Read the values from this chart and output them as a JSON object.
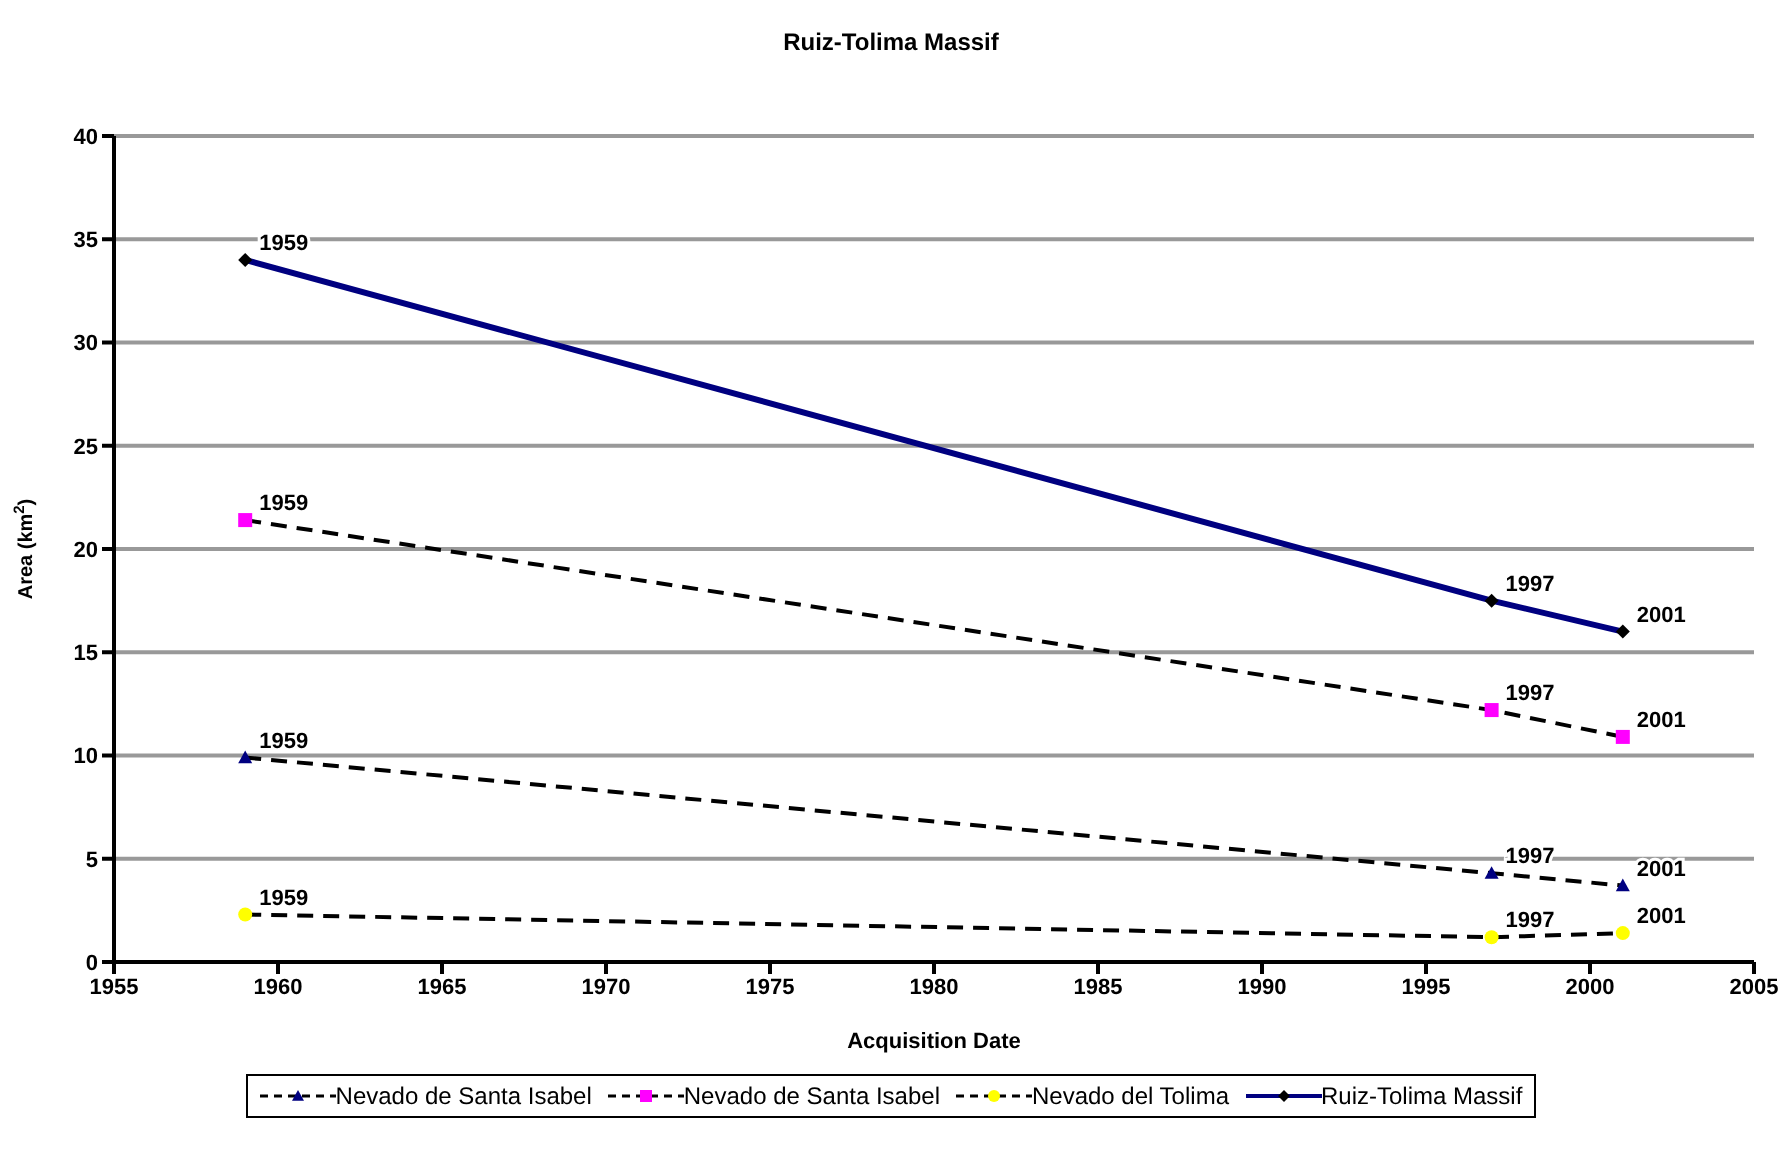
{
  "chart_data": {
    "type": "line",
    "title": "Ruiz-Tolima Massif",
    "xlabel": "Acquisition Date",
    "ylabel": "Area (km$^{2}$)",
    "x": [
      1959,
      1997,
      2001
    ],
    "series": [
      {
        "name": "Nevado de Santa Isabel",
        "color": "#000080",
        "marker": "triangle",
        "line_style": "dashed",
        "values": [
          9.9,
          4.3,
          3.7
        ]
      },
      {
        "name": "Nevado de Santa Isabel",
        "color": "#ff00ff",
        "marker": "square",
        "line_style": "dashed",
        "values": [
          21.4,
          12.2,
          10.9
        ]
      },
      {
        "name": "Nevado del Tolima",
        "color": "#ffff00",
        "marker": "circle",
        "line_style": "dashed",
        "values": [
          2.3,
          1.2,
          1.4
        ]
      },
      {
        "name": "Ruiz-Tolima Massif",
        "color": "#000080",
        "marker": "diamond",
        "line_style": "solid",
        "values": [
          34.0,
          17.5,
          16.0
        ]
      }
    ],
    "annotations": [
      {
        "text": "1959",
        "x": 1959,
        "y": 9.9
      },
      {
        "text": "1997",
        "x": 1997,
        "y": 4.3
      },
      {
        "text": "2001",
        "x": 2001,
        "y": 3.7
      },
      {
        "text": "1959",
        "x": 1959,
        "y": 21.4
      },
      {
        "text": "1997",
        "x": 1997,
        "y": 12.2
      },
      {
        "text": "2001",
        "x": 2001,
        "y": 10.9
      },
      {
        "text": "1959",
        "x": 1959,
        "y": 2.3
      },
      {
        "text": "1997",
        "x": 1997,
        "y": 1.2
      },
      {
        "text": "2001",
        "x": 2001,
        "y": 1.4
      },
      {
        "text": "1959",
        "x": 1959,
        "y": 34.0
      },
      {
        "text": "1997",
        "x": 1997,
        "y": 17.5
      },
      {
        "text": "2001",
        "x": 2001,
        "y": 16.0
      }
    ],
    "xlim": [
      1955,
      2005
    ],
    "xticks": [
      1955,
      1960,
      1965,
      1970,
      1975,
      1980,
      1985,
      1990,
      1995,
      2000,
      2005
    ],
    "ylim": [
      0,
      40
    ],
    "yticks": [
      0,
      5,
      10,
      15,
      20,
      25,
      30,
      35,
      40
    ],
    "grid": "y",
    "legend": "bottom"
  }
}
